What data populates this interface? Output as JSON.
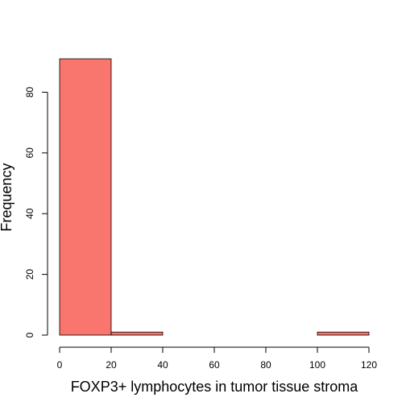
{
  "chart_data": {
    "type": "bar",
    "title": "",
    "xlabel": "FOXP3+ lymphocytes in tumor tissue stroma",
    "ylabel": "Frequency",
    "bins": [
      [
        0,
        20
      ],
      [
        20,
        40
      ],
      [
        40,
        60
      ],
      [
        60,
        80
      ],
      [
        80,
        100
      ],
      [
        100,
        120
      ]
    ],
    "values": [
      91,
      1,
      0,
      0,
      0,
      1
    ],
    "xlim": [
      0,
      120
    ],
    "ylim": [
      0,
      91
    ],
    "xticks": [
      0,
      20,
      40,
      60,
      80,
      100,
      120
    ],
    "yticks": [
      0,
      20,
      40,
      60,
      80
    ],
    "grid": false,
    "bar_color": "#F8766D",
    "edge_color": "#000000"
  }
}
